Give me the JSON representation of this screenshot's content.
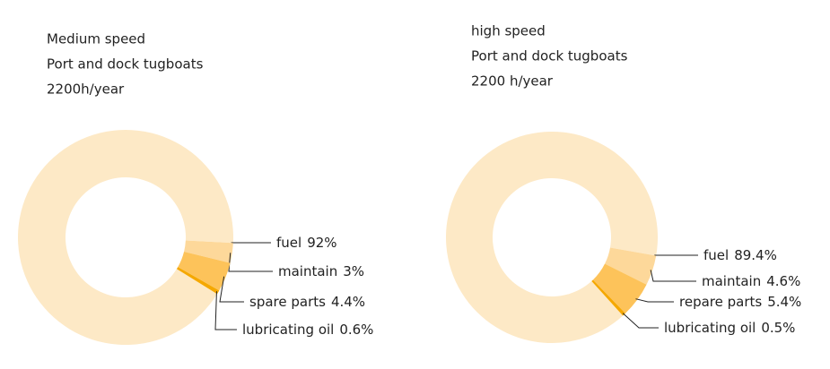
{
  "chart_data": [
    {
      "type": "donut",
      "title": "Medium speed",
      "subtitle": "Port and dock tugboats",
      "annotation": "2200h/year",
      "categories": [
        "fuel",
        "maintain",
        "spare parts",
        "lubricating oil"
      ],
      "values": [
        92,
        3,
        4.4,
        0.6
      ],
      "value_labels": [
        "92%",
        "3%",
        "4.4%",
        "0.6%"
      ],
      "colors": [
        "#fde9c6",
        "#fdd89a",
        "#fdc35a",
        "#f5a800"
      ]
    },
    {
      "type": "donut",
      "title": "high speed",
      "subtitle": "Port and dock tugboats",
      "annotation": "2200 h/year",
      "categories": [
        "fuel",
        "maintain",
        "repare parts",
        "lubricating oil"
      ],
      "values": [
        89.4,
        4.6,
        5.4,
        0.5
      ],
      "value_labels": [
        "89.4%",
        "4.6%",
        "5.4%",
        "0.5%"
      ],
      "colors": [
        "#fde9c6",
        "#fdd89a",
        "#fdc35a",
        "#f5a800"
      ]
    }
  ]
}
